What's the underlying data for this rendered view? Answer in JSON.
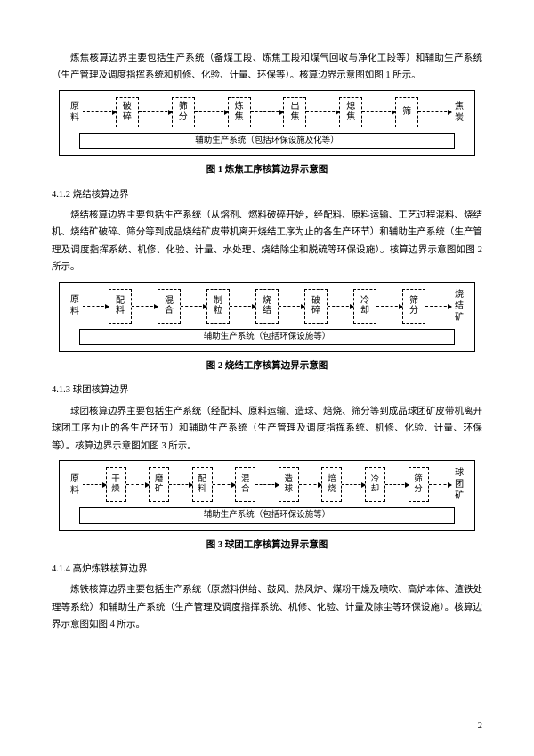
{
  "para_intro": "炼焦核算边界主要包括生产系统（备煤工段、炼焦工段和煤气回收与净化工段等）和辅助生产系统（生产管理及调度指挥系统和机修、化验、计量、环保等）。核算边界示意图如图 1 所示。",
  "fig1": {
    "caption": "图 1   炼焦工序核算边界示意图",
    "left": "原料",
    "right": "焦炭",
    "aux": "辅助生产系统（包括环保设施及化等）",
    "boxes": [
      "破碎",
      "筛分",
      "炼焦",
      "出焦",
      "熄焦",
      "筛"
    ]
  },
  "sec412_h": "4.1.2   烧结核算边界",
  "sec412_p": "烧结核算边界主要包括生产系统（从熔剂、燃料破碎开始，经配料、原料运输、工艺过程混料、烧结机、烧结矿破碎、筛分等到成品烧结矿皮带机离开烧结工序为止的各生产环节）和辅助生产系统（生产管理及调度指挥系统、机修、化验、计量、水处理、烧结除尘和脱硫等环保设施）。核算边界示意图如图 2 所示。",
  "fig2": {
    "caption": "图 2   烧结工序核算边界示意图",
    "left": "原料",
    "right": "烧结矿",
    "aux": "辅助生产系统（包括环保设施等）",
    "boxes": [
      "配料",
      "混合",
      "制粒",
      "烧结",
      "破碎",
      "冷却",
      "筛分"
    ]
  },
  "sec413_h": "4.1.3   球团核算边界",
  "sec413_p": "球团核算边界主要包括生产系统（经配料、原料运输、造球、焙烧、筛分等到成品球团矿皮带机离开球团工序为止的各生产环节）和辅助生产系统（生产管理及调度指挥系统、机修、化验、计量、环保等）。核算边界示意图如图 3 所示。",
  "fig3": {
    "caption": "图 3   球团工序核算边界示意图",
    "left": "原料",
    "right": "球团矿",
    "aux": "辅助生产系统（包括环保设施等）",
    "boxes": [
      "干燥",
      "磨矿",
      "配料",
      "混合",
      "造球",
      "焙烧",
      "冷却",
      "筛分"
    ]
  },
  "sec414_h": "4.1.4   高炉炼铁核算边界",
  "sec414_p": "炼铁核算边界主要包括生产系统（原燃料供给、鼓风、热风炉、煤粉干燥及喷吹、高炉本体、渣铁处理等系统）和辅助生产系统（生产管理及调度指挥系统、机修、化验、计量及除尘等环保设施）。核算边界示意图如图 4 所示。",
  "page_number": "2"
}
